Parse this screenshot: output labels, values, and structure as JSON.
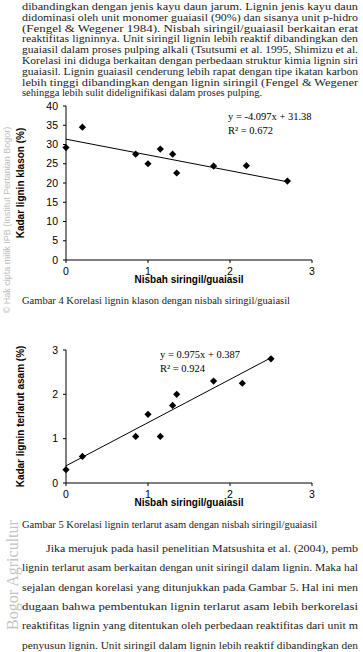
{
  "paragraph_top": [
    "dibandingkan dengan jenis kayu daun jarum. Lignin jenis kayu daun",
    "didominasi oleh unit monomer guaiasil (90%) dan sisanya unit p-hidro",
    "(Fengel & Wegener 1984). Nisbah siringil/guaiasil berkaitan erat",
    "reaktifitas ligninnya. Unit siringil lignin lebih reaktif dibandingkan den",
    "guaiasil dalam proses pulping alkali (Tsutsumi et al. 1995, Shimizu et al.",
    "Korelasi ini diduga berkaitan dengan perbedaan struktur kimia lignin siri",
    "guaiasil. Lignin guaiasil cenderung lebih rapat dengan tipe ikatan karbon",
    "lebih tinggi dibandingkan dengan lignin siringil (Fengel & Wegener",
    "sehingga lebih sulit didelignifikasi dalam proses pulping."
  ],
  "chart_data": [
    {
      "type": "scatter",
      "title": "Gambar 4 Korelasi lignin klason dengan nisbah siringil/guaiasil",
      "x_label": "Nisbah siringil/guaiasil",
      "y_label": "Kadar lignin klason (%)",
      "annotations": [
        "y = -4.097x + 31.38",
        "R² = 0.672"
      ],
      "xlim": [
        0,
        3
      ],
      "xticks": [
        0,
        1,
        2,
        3
      ],
      "ylim": [
        0,
        40
      ],
      "yticks": [
        0,
        5,
        10,
        15,
        20,
        25,
        30,
        35,
        40
      ],
      "grid": false,
      "series": [
        {
          "type": "scatter",
          "marker": "diamond",
          "color": "#000000",
          "x": [
            0.0,
            0.2,
            0.85,
            1.0,
            1.15,
            1.3,
            1.35,
            1.8,
            2.2,
            2.7
          ],
          "values": [
            29.2,
            34.5,
            27.5,
            25.0,
            28.8,
            27.5,
            22.6,
            24.4,
            24.5,
            20.5
          ]
        },
        {
          "type": "line",
          "line_style": "solid",
          "color": "#000000",
          "x": [
            0.0,
            2.7
          ],
          "values": [
            31.38,
            20.32
          ]
        }
      ]
    },
    {
      "type": "scatter",
      "title": "Gambar 5 Korelasi lignin terlarut asam dengan  nisbah siringil/guaiasil",
      "x_label": "Nisbah siringil/guaiasil",
      "y_label": "Kadar lignin terlarut asam (%)",
      "annotations": [
        "y = 0.975x + 0.387",
        "R² = 0.924"
      ],
      "xlim": [
        0,
        3
      ],
      "xticks": [
        0,
        1,
        2,
        3
      ],
      "ylim": [
        0,
        3
      ],
      "yticks": [
        0,
        1,
        2,
        3
      ],
      "grid": false,
      "series": [
        {
          "type": "scatter",
          "marker": "diamond",
          "color": "#000000",
          "x": [
            0.0,
            0.2,
            0.85,
            1.0,
            1.15,
            1.3,
            1.35,
            1.8,
            2.15,
            2.5
          ],
          "values": [
            0.3,
            0.6,
            1.05,
            1.55,
            1.05,
            1.75,
            2.0,
            2.3,
            2.25,
            2.8
          ]
        },
        {
          "type": "line",
          "line_style": "solid",
          "color": "#000000",
          "x": [
            0.0,
            2.5
          ],
          "values": [
            0.387,
            2.8245
          ]
        }
      ]
    }
  ],
  "paragraph_bottom": [
    "Jika merujuk pada hasil penelitian Matsushita et al. (2004), pemb",
    "lignin terlarut asam berkaitan dengan unit siringil dalam lignin. Maka hal",
    "sejalan dengan korelasi yang ditunjukkan pada Gambar 5. Hal ini men",
    "dugaan bahwa pembentukan lignin terlarut asam lebih berkorelasi",
    "reaktifitas lignin yang ditentukan oleh perbedaan reaktifitas dari unit m",
    "penyusun lignin. Unit siringil dalam lignin lebih reaktif dibandingkan den"
  ],
  "watermark": [
    "© Hak cipta milik IPB (Institut Pertanian Bogor)",
    "Bogor Agricultur"
  ]
}
